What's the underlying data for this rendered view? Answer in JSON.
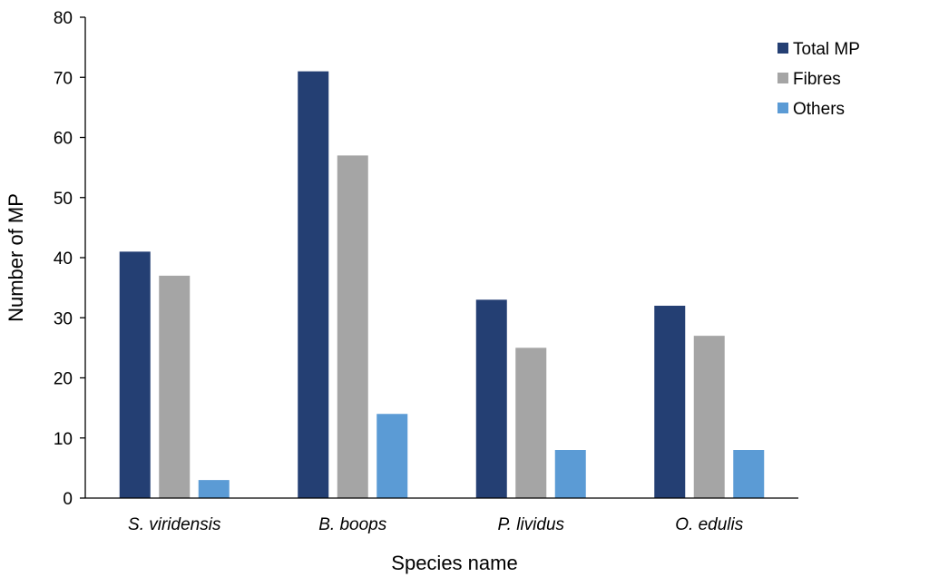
{
  "chart_data": {
    "type": "bar",
    "title": "",
    "xlabel": "Species name",
    "ylabel": "Number of MP",
    "categories": [
      "S. viridensis",
      "B. boops",
      "P. lividus",
      "O. edulis"
    ],
    "series": [
      {
        "name": "Total MP",
        "color": "#243f73",
        "values": [
          41,
          71,
          33,
          32
        ]
      },
      {
        "name": "Fibres",
        "color": "#a5a5a5",
        "values": [
          37,
          57,
          25,
          27
        ]
      },
      {
        "name": "Others",
        "color": "#5b9bd5",
        "values": [
          3,
          14,
          8,
          8
        ]
      }
    ],
    "ylim": [
      0,
      80
    ],
    "yticks": [
      0,
      10,
      20,
      30,
      40,
      50,
      60,
      70,
      80
    ],
    "grid": false,
    "legend_position": "top-right"
  }
}
